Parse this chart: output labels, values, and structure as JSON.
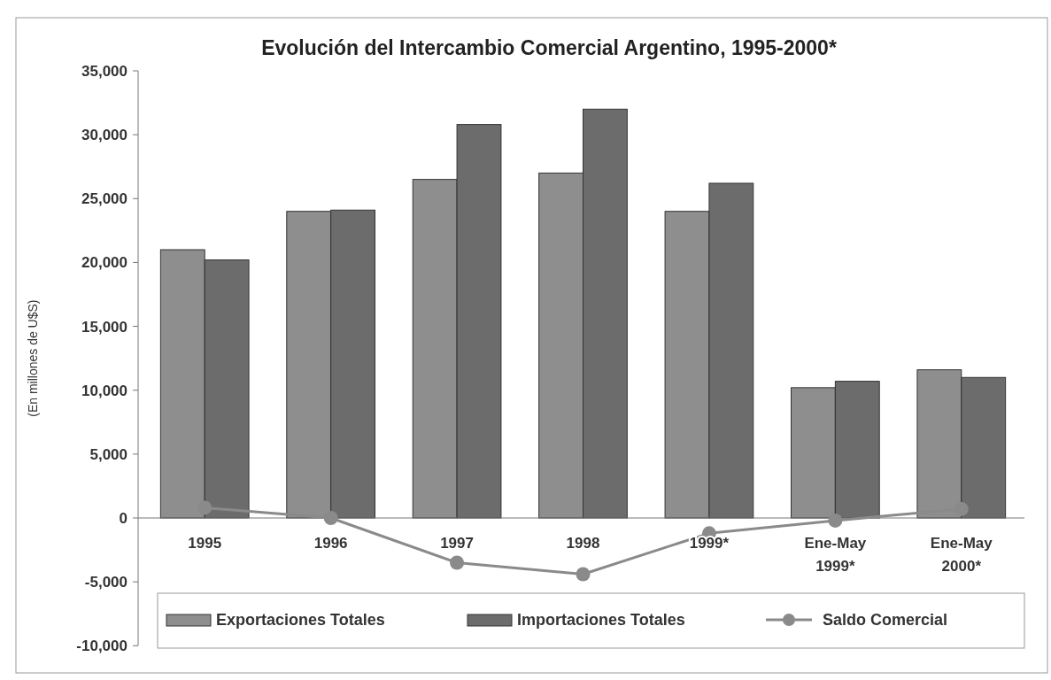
{
  "chart_data": {
    "type": "bar",
    "title": "Evolución del Intercambio Comercial Argentino, 1995-2000*",
    "ylabel": "(En millones de U$S)",
    "categories": [
      "1995",
      "1996",
      "1997",
      "1998",
      "1999*",
      "Ene-May 1999*",
      "Ene-May 2000*"
    ],
    "series": [
      {
        "name": "Exportaciones Totales",
        "color": "#8e8e8e",
        "values": [
          21000,
          24000,
          26500,
          27000,
          24000,
          10200,
          11600
        ]
      },
      {
        "name": "Importaciones Totales",
        "color": "#6c6c6c",
        "values": [
          20200,
          24100,
          30800,
          32000,
          26200,
          10700,
          11000
        ]
      },
      {
        "name": "Saldo Comercial",
        "type": "line",
        "color": "#8a8a8a",
        "marker": "circle",
        "values": [
          800,
          0,
          -3500,
          -4400,
          -1200,
          -200,
          700
        ]
      }
    ],
    "ylim": [
      -10000,
      35000
    ],
    "yticks": [
      {
        "value": -10000,
        "label": "-10,000"
      },
      {
        "value": -5000,
        "label": "-5,000"
      },
      0,
      {
        "value": 5000,
        "label": "5,000"
      },
      {
        "value": 10000,
        "label": "10,000"
      },
      {
        "value": 15000,
        "label": "15,000"
      },
      {
        "value": 20000,
        "label": "20,000"
      },
      {
        "value": 25000,
        "label": "25,000"
      },
      {
        "value": 30000,
        "label": "30,000"
      },
      {
        "value": 35000,
        "label": "35,000"
      }
    ],
    "legend": "bottom"
  }
}
